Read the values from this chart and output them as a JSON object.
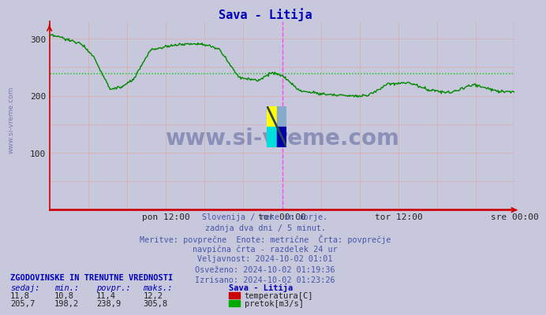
{
  "title": "Sava - Litija",
  "title_color": "#0000bb",
  "bg_color": "#c8c8dc",
  "plot_bg_color": "#c8c8dc",
  "line_color": "#008800",
  "line_color_temp": "#cc0000",
  "avg_line_color": "#00cc00",
  "avg_value": 238.9,
  "x_min": 0,
  "x_max": 576,
  "y_min": 0,
  "y_max": 330,
  "y_ticks": [
    100,
    200,
    300
  ],
  "x_tick_labels": [
    "pon 12:00",
    "tor 00:00",
    "tor 12:00",
    "sre 00:00"
  ],
  "x_tick_positions": [
    144,
    288,
    432,
    576
  ],
  "vline_positions": [
    288,
    576
  ],
  "vline_color": "#ff44ff",
  "text_color": "#4455aa",
  "watermark_color": "#1a2a7a",
  "info_lines": [
    "Slovenija / reke in morje.",
    "zadnja dva dni / 5 minut.",
    "Meritve: povprečne  Enote: metrične  Črta: povprečje",
    "navpična črta - razdelek 24 ur",
    "Veljavnost: 2024-10-02 01:01",
    "Osveženo: 2024-10-02 01:19:36",
    "Izrisano: 2024-10-02 01:23:26"
  ],
  "table_header": "ZGODOVINSKE IN TRENUTNE VREDNOSTI",
  "table_cols": [
    "sedaj:",
    "min.:",
    "povpr.:",
    "maks.:"
  ],
  "table_row1": [
    "11,8",
    "10,8",
    "11,4",
    "12,2"
  ],
  "table_row2": [
    "205,7",
    "198,2",
    "238,9",
    "305,8"
  ],
  "legend_label1": "temperatura[C]",
  "legend_label2": "pretok[m3/s]",
  "legend_color1": "#cc0000",
  "legend_color2": "#00aa00",
  "station_label": "Sava - Litija",
  "watermark_text": "www.si-vreme.com",
  "sidewatermark": "www.si-vreme.com"
}
